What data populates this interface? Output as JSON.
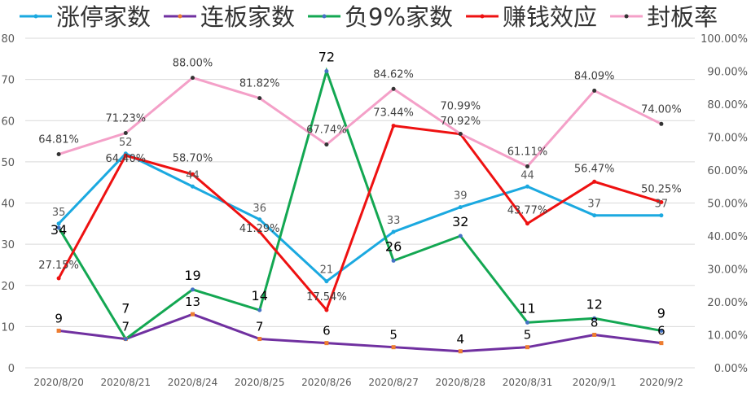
{
  "chart_data": {
    "type": "line",
    "categories": [
      "2020/8/20",
      "2020/8/21",
      "2020/8/24",
      "2020/8/25",
      "2020/8/26",
      "2020/8/27",
      "2020/8/28",
      "2020/8/31",
      "2020/9/1",
      "2020/9/2"
    ],
    "y_left": {
      "min": 0,
      "max": 80,
      "step": 10,
      "ticks": [
        "0",
        "10",
        "20",
        "30",
        "40",
        "50",
        "60",
        "70",
        "80"
      ]
    },
    "y_right": {
      "min": 0,
      "max": 100,
      "step": 10,
      "ticks": [
        "0.00%",
        "10.00%",
        "20.00%",
        "30.00%",
        "40.00%",
        "50.00%",
        "60.00%",
        "70.00%",
        "80.00%",
        "90.00%",
        "100.00%"
      ]
    },
    "grid": true,
    "legend_position": "top",
    "series": [
      {
        "name": "涨停家数",
        "axis": "left",
        "color": "#1BA9E0",
        "values": [
          35,
          52,
          44,
          36,
          21,
          33,
          39,
          44,
          37,
          37
        ],
        "labels": [
          "35",
          "52",
          "44",
          "36",
          "21",
          "33",
          "39",
          "44",
          "37",
          "37"
        ]
      },
      {
        "name": "连板家数",
        "axis": "left",
        "color": "#7030A0",
        "marker_color": "#ED7D31",
        "values": [
          9,
          7,
          13,
          7,
          6,
          5,
          4,
          5,
          8,
          6
        ],
        "labels": [
          "9",
          "7",
          "13",
          "7",
          "6",
          "5",
          "4",
          "5",
          "8",
          "6"
        ]
      },
      {
        "name": "负9%家数",
        "axis": "left",
        "color": "#13A752",
        "marker_color": "#4472C4",
        "values": [
          34,
          7,
          19,
          14,
          72,
          26,
          32,
          11,
          12,
          9
        ],
        "labels": [
          "34",
          "7",
          "19",
          "14",
          "72",
          "26",
          "32",
          "11",
          "12",
          "9"
        ]
      },
      {
        "name": "赚钱效应",
        "axis": "right",
        "color": "#EE1111",
        "values": [
          27.15,
          64.4,
          58.7,
          41.29,
          17.54,
          73.44,
          70.92,
          43.77,
          56.47,
          50.25
        ],
        "labels": [
          "27.15%",
          "64.40%",
          "58.70%",
          "41.29%",
          "17.54%",
          "73.44%",
          "70.92%",
          "43.77%",
          "56.47%",
          "50.25%"
        ]
      },
      {
        "name": "封板率",
        "axis": "right",
        "color": "#F4A0C8",
        "marker_color": "#333333",
        "values": [
          64.81,
          71.23,
          88.0,
          81.82,
          67.74,
          84.62,
          70.99,
          61.11,
          84.09,
          74.0
        ],
        "labels": [
          "64.81%",
          "71.23%",
          "88.00%",
          "81.82%",
          "67.74%",
          "84.62%",
          "70.99%",
          "61.11%",
          "84.09%",
          "74.00%"
        ]
      }
    ]
  }
}
